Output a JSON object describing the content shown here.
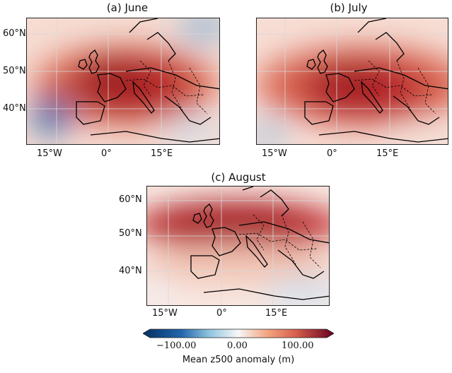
{
  "panels": [
    {
      "title": "(a) June"
    },
    {
      "title": "(b) July"
    },
    {
      "title": "(c) August"
    }
  ],
  "lat_ticks": [
    "60°N",
    "50°N",
    "40°N"
  ],
  "lon_ticks": [
    "15°W",
    "0°",
    "15°E"
  ],
  "colorbar": {
    "ticks": [
      "−100.00",
      "0.00",
      "100.00"
    ],
    "label": "Mean z500 anomaly (m)",
    "colors": {
      "negative": "#2166ac",
      "neutral": "#f7f7f7",
      "positive": "#a50f15"
    }
  }
}
